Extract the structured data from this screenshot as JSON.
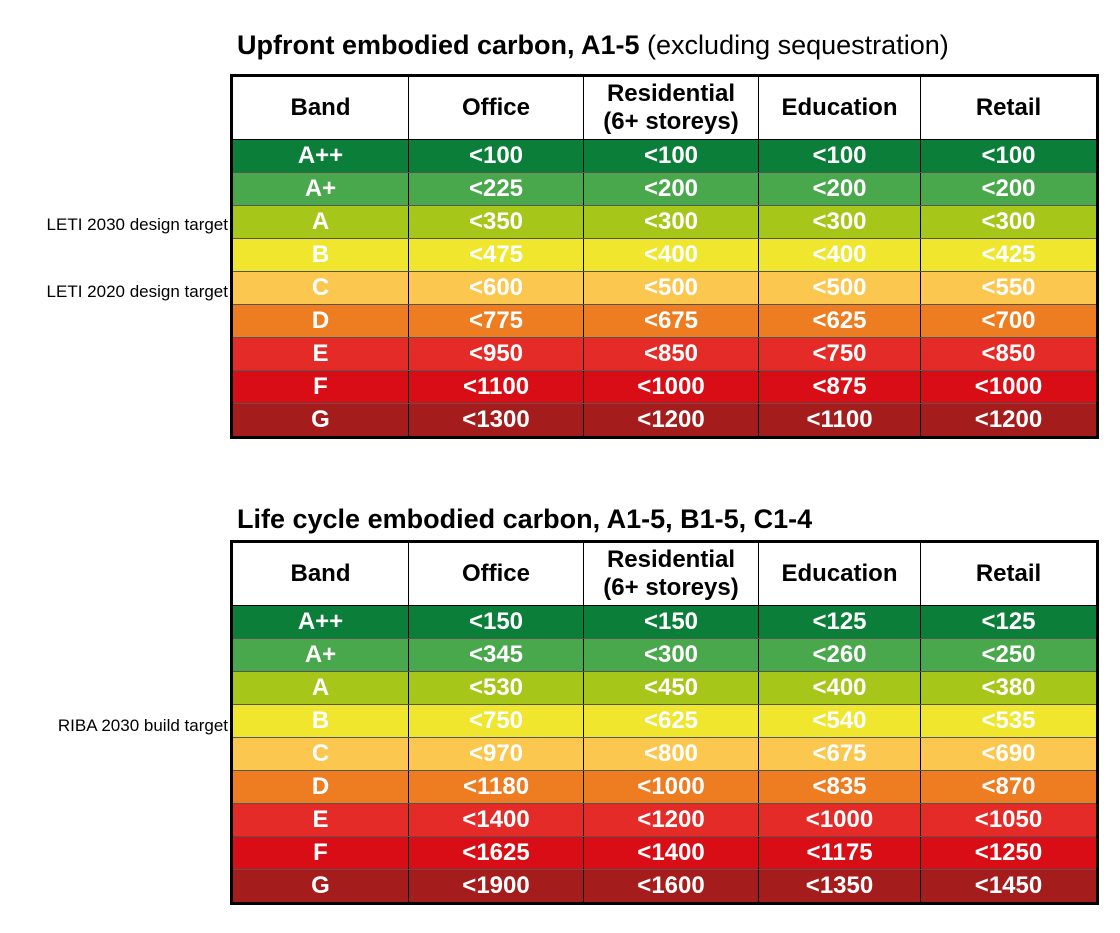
{
  "tables": [
    {
      "title_bold": "Upfront embodied carbon, A1-5",
      "title_normal": "(excluding sequestration)",
      "header": [
        "Band",
        "Office",
        "Residential\n(6+ storeys)",
        "Education",
        "Retail"
      ],
      "rows": [
        [
          "A++",
          "<100",
          "<100",
          "<100",
          "<100"
        ],
        [
          "A+",
          "<225",
          "<200",
          "<200",
          "<200"
        ],
        [
          "A",
          "<350",
          "<300",
          "<300",
          "<300"
        ],
        [
          "B",
          "<475",
          "<400",
          "<400",
          "<425"
        ],
        [
          "C",
          "<600",
          "<500",
          "<500",
          "<550"
        ],
        [
          "D",
          "<775",
          "<675",
          "<625",
          "<700"
        ],
        [
          "E",
          "<950",
          "<850",
          "<750",
          "<850"
        ],
        [
          "F",
          "<1100",
          "<1000",
          "<875",
          "<1000"
        ],
        [
          "G",
          "<1300",
          "<1200",
          "<1100",
          "<1200"
        ]
      ],
      "annotations": [
        "LETI 2030 design target",
        "LETI 2020 design target"
      ]
    },
    {
      "title_bold": "Life cycle embodied carbon, A1-5, B1-5, C1-4",
      "header": [
        "Band",
        "Office",
        "Residential\n(6+ storeys)",
        "Education",
        "Retail"
      ],
      "rows": [
        [
          "A++",
          "<150",
          "<150",
          "<125",
          "<125"
        ],
        [
          "A+",
          "<345",
          "<300",
          "<260",
          "<250"
        ],
        [
          "A",
          "<530",
          "<450",
          "<400",
          "<380"
        ],
        [
          "B",
          "<750",
          "<625",
          "<540",
          "<535"
        ],
        [
          "C",
          "<970",
          "<800",
          "<675",
          "<690"
        ],
        [
          "D",
          "<1180",
          "<1000",
          "<835",
          "<870"
        ],
        [
          "E",
          "<1400",
          "<1200",
          "<1000",
          "<1050"
        ],
        [
          "F",
          "<1625",
          "<1400",
          "<1175",
          "<1250"
        ],
        [
          "G",
          "<1900",
          "<1600",
          "<1350",
          "<1450"
        ]
      ],
      "annotations": [
        "RIBA 2030 build target"
      ]
    }
  ]
}
